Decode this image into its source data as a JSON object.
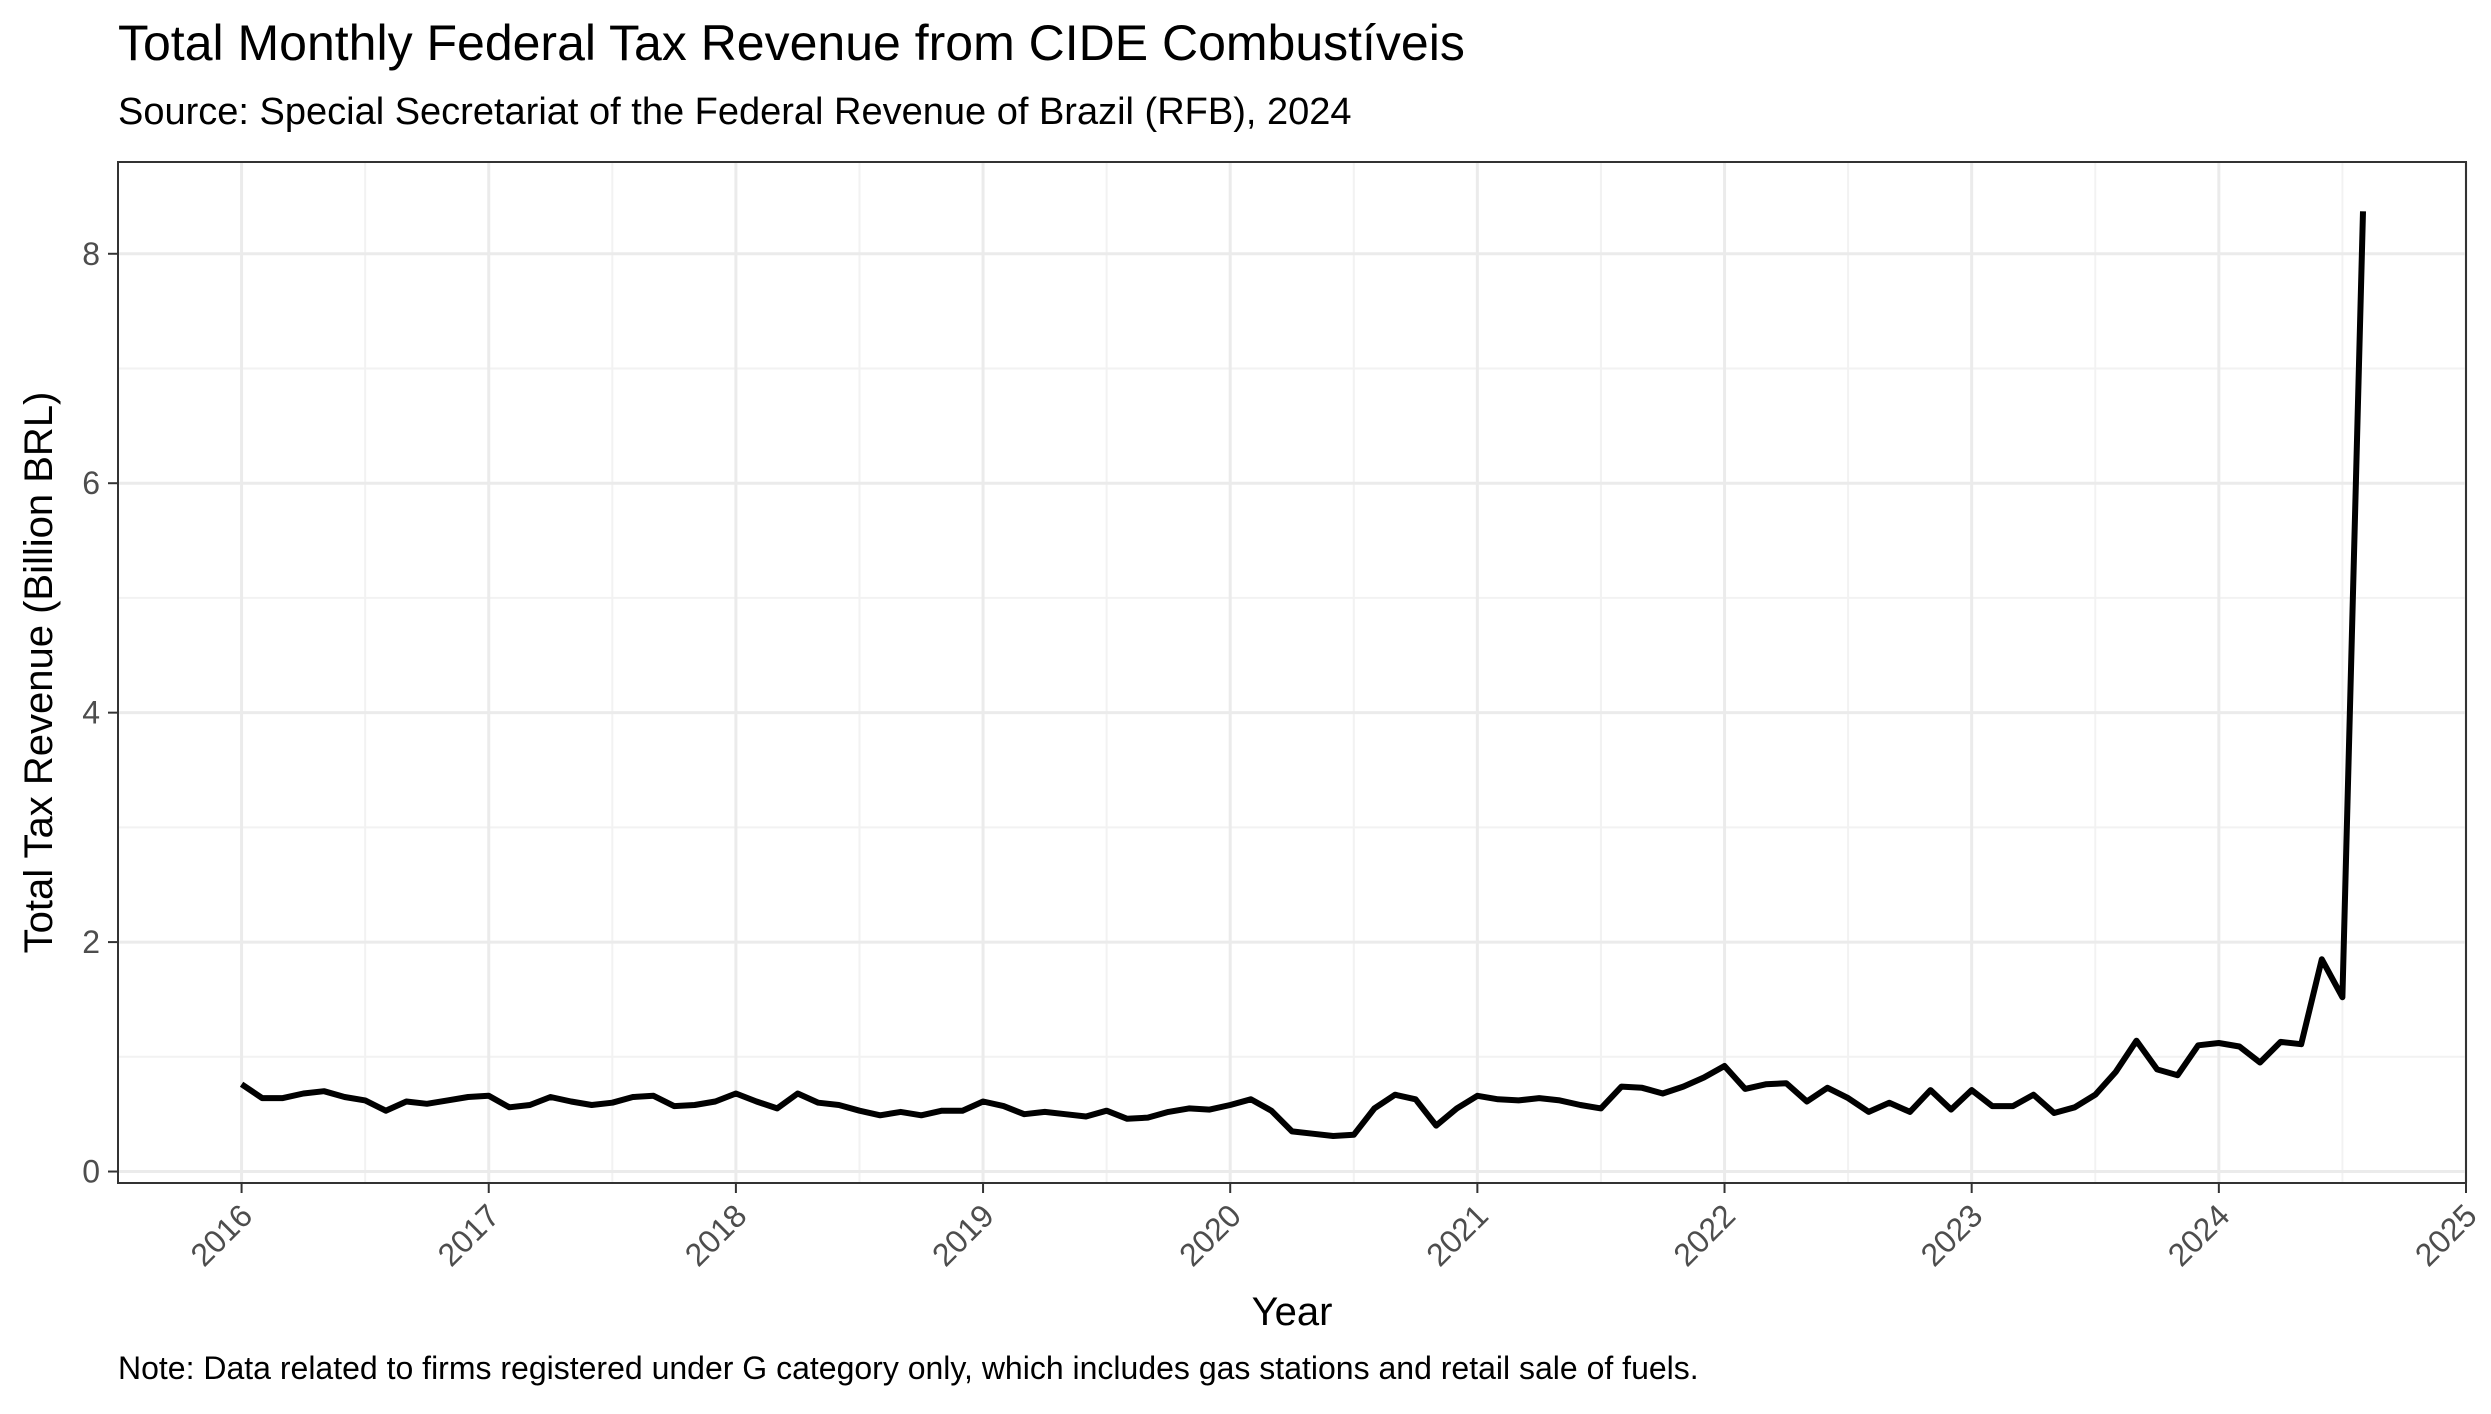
{
  "chart_data": {
    "type": "line",
    "title": "Total Monthly Federal Tax Revenue from CIDE Combustíveis",
    "subtitle": "Source: Special Secretariat of the Federal Revenue of Brazil (RFB), 2024",
    "caption": "Note: Data related to firms registered under G category only, which includes gas stations and retail sale of fuels.",
    "xlabel": "Year",
    "ylabel": "Total Tax Revenue (Billion BRL)",
    "x_ticks": [
      "2016",
      "2017",
      "2018",
      "2019",
      "2020",
      "2021",
      "2022",
      "2023",
      "2024",
      "2025"
    ],
    "y_ticks": [
      0,
      2,
      4,
      6,
      8
    ],
    "xlim": [
      "2015-07",
      "2025-01"
    ],
    "ylim": [
      -0.1,
      8.8
    ],
    "grid": true,
    "line_color": "#000000",
    "x_start": "2016-01",
    "x_step": "month",
    "values": [
      0.76,
      0.64,
      0.64,
      0.68,
      0.7,
      0.65,
      0.62,
      0.53,
      0.61,
      0.59,
      0.62,
      0.65,
      0.66,
      0.56,
      0.58,
      0.65,
      0.61,
      0.58,
      0.6,
      0.65,
      0.66,
      0.57,
      0.58,
      0.61,
      0.68,
      0.61,
      0.55,
      0.68,
      0.6,
      0.58,
      0.53,
      0.49,
      0.52,
      0.49,
      0.53,
      0.53,
      0.61,
      0.57,
      0.5,
      0.52,
      0.5,
      0.48,
      0.53,
      0.46,
      0.47,
      0.52,
      0.55,
      0.54,
      0.58,
      0.63,
      0.53,
      0.35,
      0.33,
      0.31,
      0.32,
      0.55,
      0.67,
      0.63,
      0.4,
      0.55,
      0.66,
      0.63,
      0.62,
      0.64,
      0.62,
      0.58,
      0.55,
      0.74,
      0.73,
      0.68,
      0.74,
      0.82,
      0.92,
      0.72,
      0.76,
      0.77,
      0.61,
      0.73,
      0.64,
      0.52,
      0.6,
      0.52,
      0.71,
      0.54,
      0.71,
      0.57,
      0.57,
      0.67,
      0.51,
      0.56,
      0.67,
      0.87,
      1.14,
      0.89,
      0.84,
      1.1,
      1.12,
      1.09,
      0.95,
      1.13,
      1.11,
      1.85,
      1.52,
      8.37
    ]
  }
}
